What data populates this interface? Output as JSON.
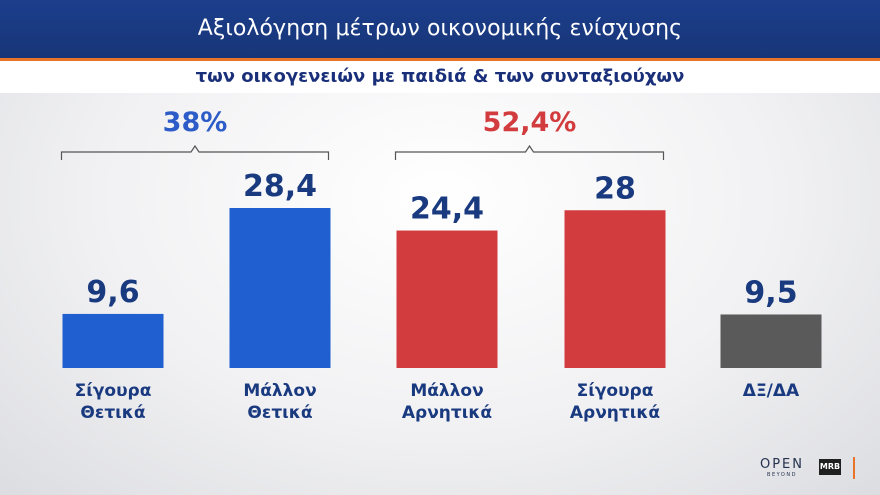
{
  "header": {
    "title": "Αξιολόγηση μέτρων οικονομικής ενίσχυσης",
    "subtitle": "των οικογενειών με παιδιά & των συνταξιούχων"
  },
  "brand": {
    "open_main": "OPEN",
    "open_sub": "BEYOND",
    "mrb": "MRB"
  },
  "chart_data": {
    "type": "bar",
    "title": "Αξιολόγηση μέτρων οικονομικής ενίσχυσης",
    "subtitle": "των οικογενειών με παιδιά & των συνταξιούχων",
    "categories": [
      [
        "Σίγουρα",
        "Θετικά"
      ],
      [
        "Μάλλον",
        "Θετικά"
      ],
      [
        "Μάλλον",
        "Αρνητικά"
      ],
      [
        "Σίγουρα",
        "Αρνητικά"
      ],
      [
        "ΔΞ/ΔΑ"
      ]
    ],
    "values": [
      9.6,
      28.4,
      24.4,
      28,
      9.5
    ],
    "value_labels": [
      "9,6",
      "28,4",
      "24,4",
      "28",
      "9,5"
    ],
    "colors": [
      "#1f5fcf",
      "#1f5fcf",
      "#d23c3e",
      "#d23c3e",
      "#5a5a5a"
    ],
    "label_colors": [
      "#1a3a80",
      "#1a3a80",
      "#1a3a80",
      "#1a3a80",
      "#1a3a80"
    ],
    "groups": [
      {
        "label": "38%",
        "from": 0,
        "to": 1,
        "color": "#2d5cc8"
      },
      {
        "label": "52,4%",
        "from": 2,
        "to": 3,
        "color": "#d23c3e"
      }
    ],
    "ylim": [
      0,
      28.4
    ],
    "grid": false,
    "legend": "none"
  }
}
